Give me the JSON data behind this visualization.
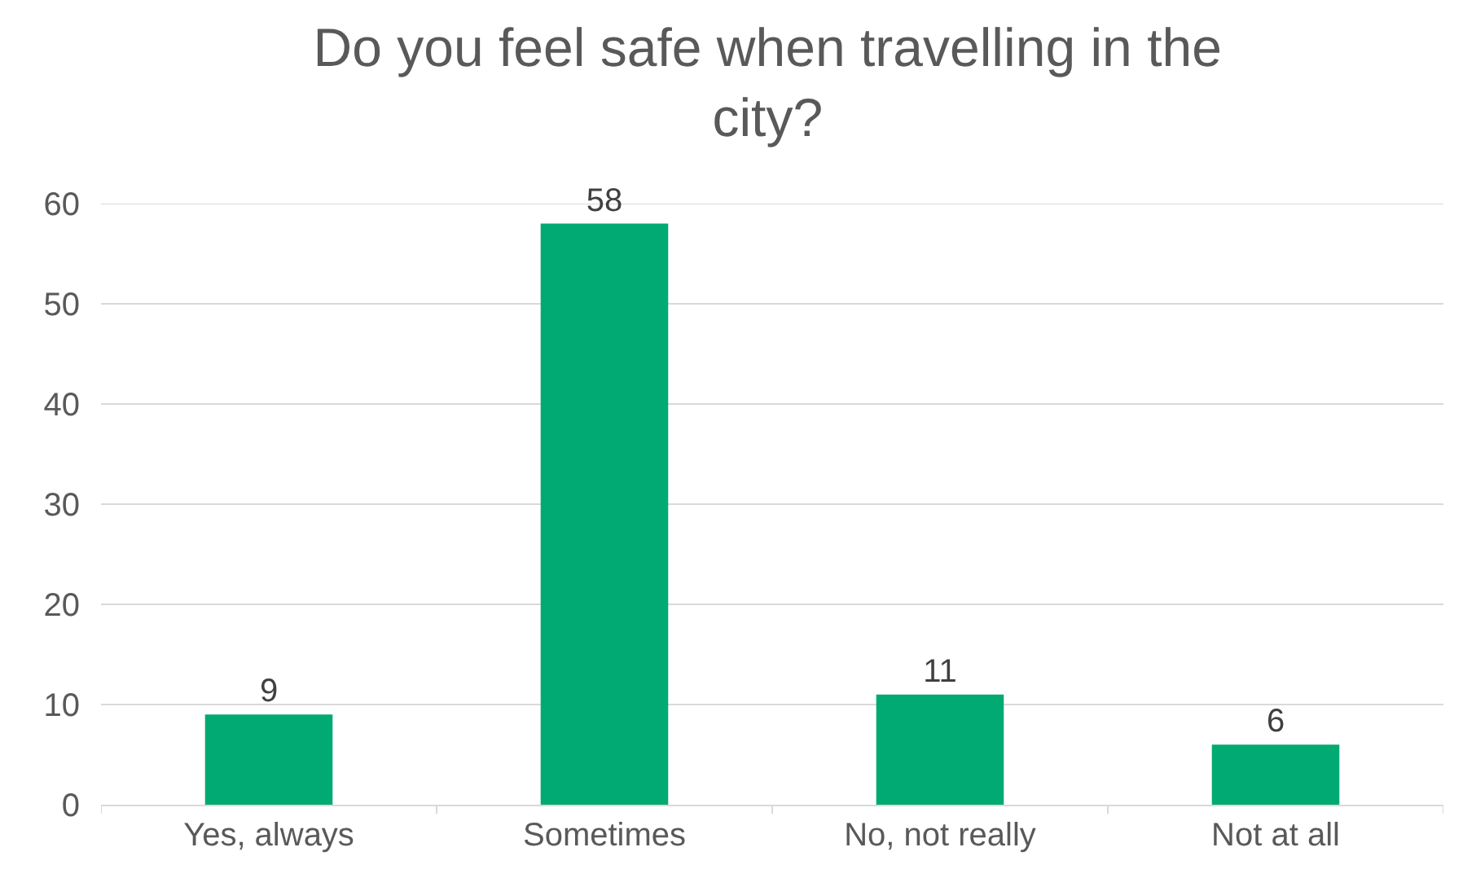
{
  "chart_data": {
    "type": "bar",
    "title": "Do you feel safe when travelling in the city?",
    "categories": [
      "Yes, always",
      "Sometimes",
      "No, not really",
      "Not at all"
    ],
    "values": [
      9,
      58,
      11,
      6
    ],
    "color": "#00aa72",
    "ylim": [
      0,
      60
    ],
    "yticks": [
      0,
      10,
      20,
      30,
      40,
      50,
      60
    ],
    "grid": "y",
    "data_labels": true
  }
}
